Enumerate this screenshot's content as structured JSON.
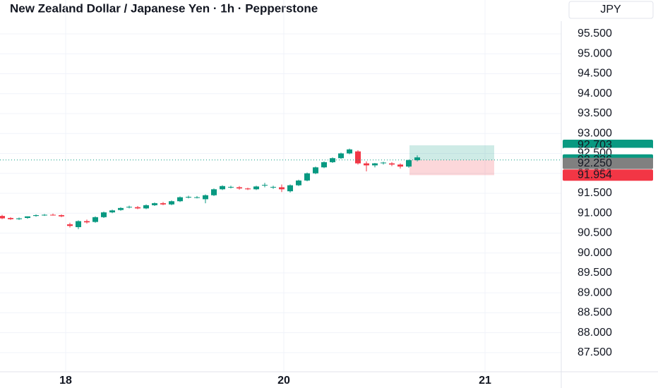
{
  "chart_data": {
    "type": "candlestick",
    "title": "New Zealand Dollar / Japanese Yen · 1h · Pepperstone",
    "currency": "JPY",
    "up_color": "#089981",
    "down_color": "#f23645",
    "xlim": [
      -0.25,
      66
    ],
    "ylim": [
      87.02,
      96.35
    ],
    "xticks": [
      {
        "value": 7.5,
        "label": "18"
      },
      {
        "value": 33.25,
        "label": "20"
      },
      {
        "value": 57,
        "label": "21"
      }
    ],
    "yticks": [
      {
        "value": 87.5,
        "label": "87.500"
      },
      {
        "value": 88,
        "label": "88.000"
      },
      {
        "value": 88.5,
        "label": "88.500"
      },
      {
        "value": 89,
        "label": "89.000"
      },
      {
        "value": 89.5,
        "label": "89.500"
      },
      {
        "value": 90,
        "label": "90.000"
      },
      {
        "value": 90.5,
        "label": "90.500"
      },
      {
        "value": 91,
        "label": "91.000"
      },
      {
        "value": 91.5,
        "label": "91.500"
      },
      {
        "value": 92,
        "label": "92.000"
      },
      {
        "value": 92.5,
        "label": "92.500"
      },
      {
        "value": 93,
        "label": "93.000"
      },
      {
        "value": 93.5,
        "label": "93.500"
      },
      {
        "value": 94,
        "label": "94.000"
      },
      {
        "value": 94.5,
        "label": "94.500"
      },
      {
        "value": 95,
        "label": "95.000"
      },
      {
        "value": 95.5,
        "label": "95.500"
      }
    ],
    "grid": true,
    "open": [
      90.93,
      90.88,
      90.85,
      90.88,
      90.93,
      90.95,
      90.96,
      90.95,
      90.72,
      90.65,
      90.8,
      90.78,
      90.9,
      91.02,
      91.08,
      91.15,
      91.15,
      91.12,
      91.2,
      91.25,
      91.22,
      91.3,
      91.4,
      91.4,
      91.35,
      91.45,
      91.6,
      91.65,
      91.65,
      91.62,
      91.6,
      91.7,
      91.65,
      91.65,
      91.55,
      91.7,
      91.82,
      92.0,
      92.15,
      92.28,
      92.38,
      92.5,
      92.55,
      92.25,
      92.2,
      92.26,
      92.25,
      92.22,
      92.17,
      92.33
    ],
    "high": [
      90.96,
      90.9,
      90.89,
      90.92,
      90.97,
      90.98,
      90.99,
      90.97,
      90.76,
      90.82,
      90.84,
      90.92,
      91.04,
      91.09,
      91.15,
      91.19,
      91.18,
      91.22,
      91.27,
      91.28,
      91.32,
      91.42,
      91.44,
      91.43,
      91.47,
      91.62,
      91.7,
      91.69,
      91.68,
      91.64,
      91.69,
      91.76,
      91.69,
      91.72,
      91.72,
      91.84,
      92.02,
      92.17,
      92.3,
      92.4,
      92.52,
      92.62,
      92.58,
      92.3,
      92.26,
      92.29,
      92.28,
      92.25,
      92.35,
      92.45
    ],
    "low": [
      90.85,
      90.83,
      90.83,
      90.86,
      90.91,
      90.93,
      90.94,
      90.9,
      90.64,
      90.6,
      90.74,
      90.76,
      90.88,
      91.0,
      91.06,
      91.12,
      91.1,
      91.1,
      91.18,
      91.2,
      91.2,
      91.28,
      91.37,
      91.37,
      91.25,
      91.43,
      91.58,
      91.62,
      91.59,
      91.58,
      91.58,
      91.65,
      91.61,
      91.53,
      91.52,
      91.68,
      91.8,
      91.98,
      92.13,
      92.26,
      92.36,
      92.48,
      92.22,
      92.05,
      92.15,
      92.22,
      92.18,
      92.12,
      92.14,
      92.3
    ],
    "close": [
      90.87,
      90.85,
      90.87,
      90.92,
      90.95,
      90.96,
      90.95,
      90.92,
      90.68,
      90.8,
      90.77,
      90.9,
      91.02,
      91.07,
      91.13,
      91.16,
      91.12,
      91.2,
      91.25,
      91.22,
      91.3,
      91.4,
      91.41,
      91.4,
      91.45,
      91.6,
      91.68,
      91.66,
      91.62,
      91.6,
      91.67,
      91.71,
      91.66,
      91.6,
      91.7,
      91.82,
      92.0,
      92.15,
      92.28,
      92.38,
      92.5,
      92.6,
      92.25,
      92.2,
      92.25,
      92.27,
      92.22,
      92.17,
      92.33,
      92.4
    ],
    "price_labels": [
      {
        "value": 92.703,
        "label": "92.703",
        "color": "#089981"
      },
      {
        "value": 92.5,
        "label": "92.500",
        "color": "#ffffff"
      },
      {
        "value": 92.336,
        "label": "92.336",
        "color": "#089981"
      },
      {
        "value": 92.25,
        "label": "92.250",
        "color": "#808080"
      },
      {
        "value": 91.954,
        "label": "91.954",
        "color": "#f23645"
      }
    ],
    "position": {
      "target": 92.703,
      "entry": 92.336,
      "stop": 91.954
    }
  }
}
